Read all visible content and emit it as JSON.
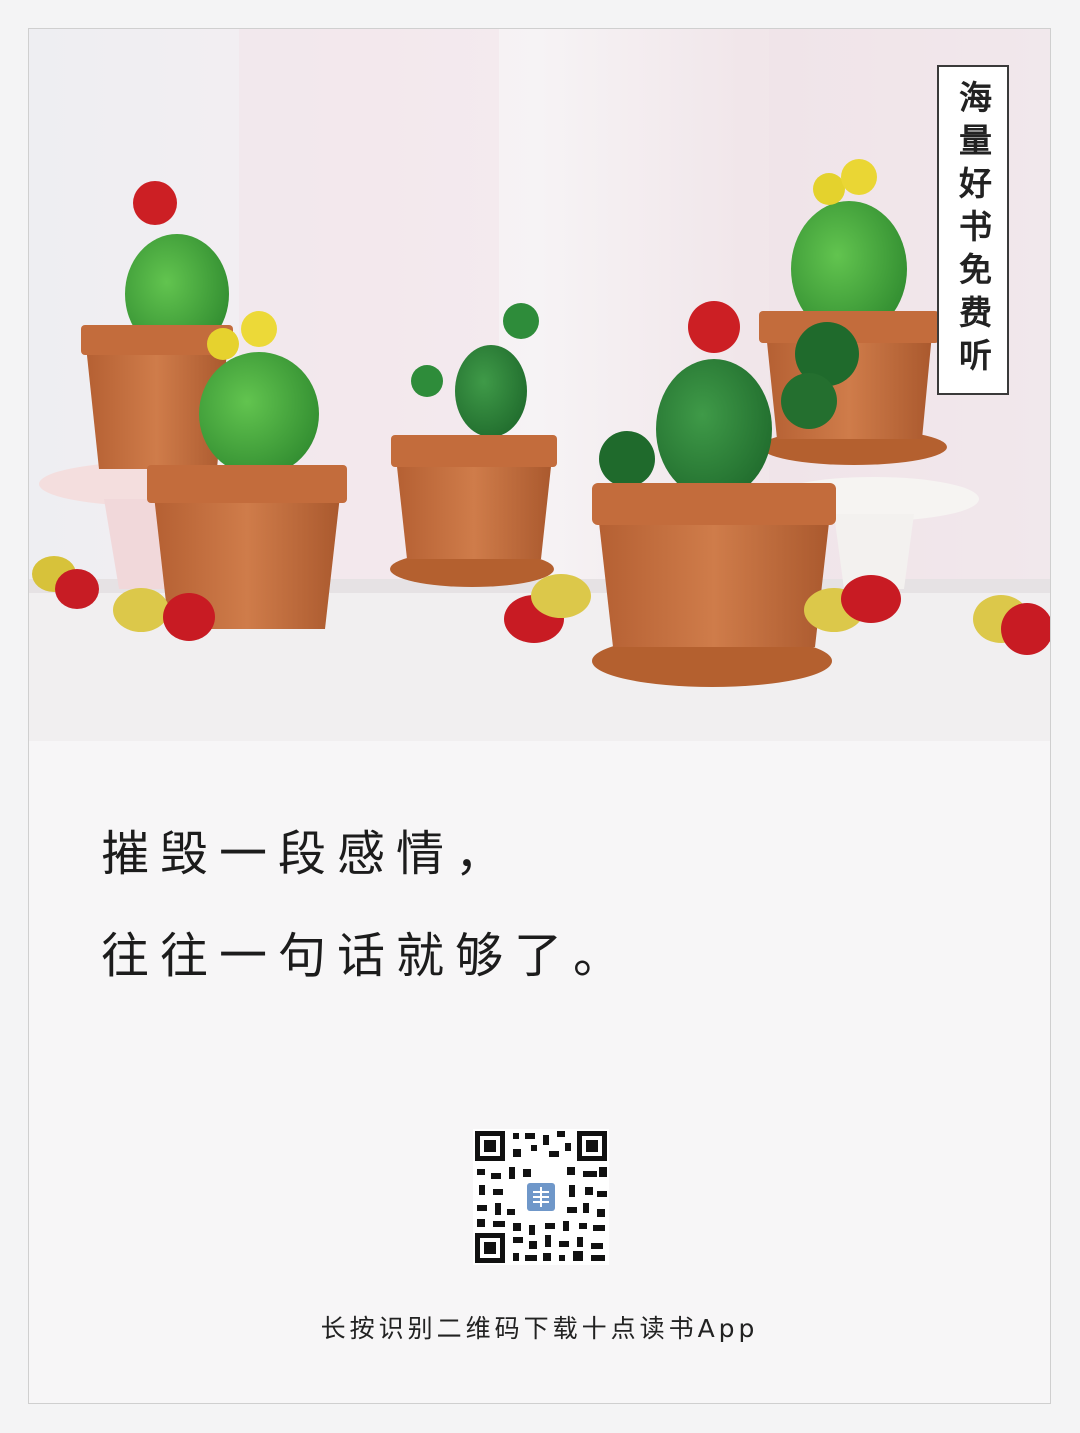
{
  "side_tag": {
    "text": "海量好书免费听"
  },
  "quote": {
    "line1": "摧毁一段感情，",
    "line2": "往往一句话就够了。"
  },
  "footer": {
    "caption": "长按识别二维码下载十点读书App"
  },
  "colors": {
    "pot": "#c4703f",
    "cactus": "#3f9b3a",
    "background": "#f7f6f7"
  },
  "icons": {
    "qr": "qr-code-icon",
    "app_logo": "app-logo-icon"
  }
}
